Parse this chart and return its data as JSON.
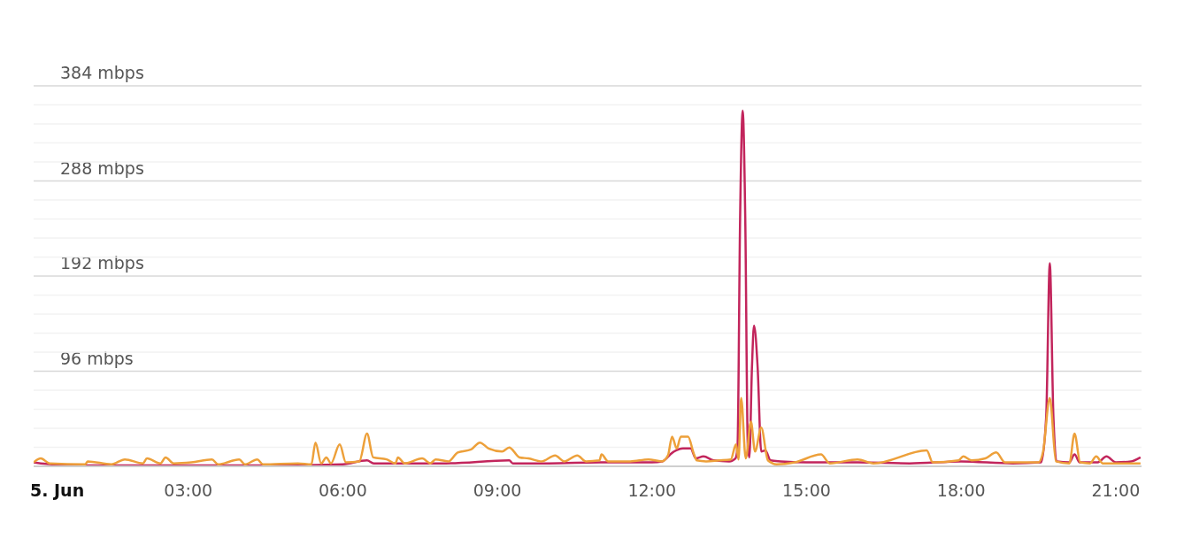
{
  "chart_data": {
    "type": "line",
    "xlim": [
      0,
      21.5
    ],
    "xticks": [
      {
        "value": 0,
        "label": "5. Jun"
      },
      {
        "value": 3,
        "label": "03:00"
      },
      {
        "value": 6,
        "label": "06:00"
      },
      {
        "value": 9,
        "label": "09:00"
      },
      {
        "value": 12,
        "label": "12:00"
      },
      {
        "value": 15,
        "label": "15:00"
      },
      {
        "value": 18,
        "label": "18:00"
      },
      {
        "value": 21,
        "label": "21:00"
      }
    ],
    "ylim": [
      0,
      384
    ],
    "yticks": [
      {
        "value": 0,
        "label": null
      },
      {
        "value": 19.2,
        "label": null
      },
      {
        "value": 38.4,
        "label": null
      },
      {
        "value": 57.6,
        "label": null
      },
      {
        "value": 76.8,
        "label": null
      },
      {
        "value": 96,
        "label": "96 mbps"
      },
      {
        "value": 115.2,
        "label": null
      },
      {
        "value": 134.4,
        "label": null
      },
      {
        "value": 153.6,
        "label": null
      },
      {
        "value": 172.8,
        "label": null
      },
      {
        "value": 192,
        "label": "192 mbps"
      },
      {
        "value": 211.2,
        "label": null
      },
      {
        "value": 230.4,
        "label": null
      },
      {
        "value": 249.6,
        "label": null
      },
      {
        "value": 268.8,
        "label": null
      },
      {
        "value": 288,
        "label": "288 mbps"
      },
      {
        "value": 307.2,
        "label": null
      },
      {
        "value": 326.4,
        "label": null
      },
      {
        "value": 345.6,
        "label": null
      },
      {
        "value": 364.8,
        "label": null
      },
      {
        "value": 384,
        "label": "384 mbps"
      }
    ],
    "grid": "y",
    "legend": false,
    "marker": "none",
    "series": [
      {
        "color": "#c2255c",
        "x": [
          0,
          0.14,
          1.0,
          2.5,
          3.5,
          5.0,
          6.0,
          6.47,
          6.6,
          8.0,
          9.23,
          9.3,
          10.0,
          11.0,
          12.0,
          12.2,
          12.4,
          12.6,
          12.75,
          12.85,
          13.0,
          13.2,
          13.5,
          13.62,
          13.66,
          13.71,
          13.76,
          13.81,
          13.86,
          13.89,
          13.94,
          13.98,
          14.05,
          14.12,
          14.2,
          14.3,
          14.5,
          15.0,
          16.0,
          17.0,
          18.0,
          19.0,
          19.55,
          19.65,
          19.72,
          19.79,
          19.86,
          20.1,
          20.2,
          20.3,
          20.65,
          20.82,
          21.0,
          21.3,
          21.48
        ],
        "values": [
          4,
          3,
          1,
          1,
          1,
          1,
          2,
          6,
          3,
          3,
          6,
          3,
          3,
          4,
          4,
          5,
          14,
          18,
          18,
          8,
          10,
          6,
          5,
          8,
          20,
          250,
          359,
          250,
          20,
          9,
          100,
          142,
          100,
          15,
          16,
          6,
          5,
          4,
          4,
          3,
          5,
          3,
          4,
          50,
          205,
          50,
          5,
          4,
          12,
          4,
          4,
          10,
          4,
          5,
          9
        ]
      },
      {
        "color": "#eda03a",
        "x": [
          0,
          0.14,
          0.31,
          1.0,
          1.05,
          1.51,
          1.77,
          2.12,
          2.2,
          2.46,
          2.56,
          2.72,
          3.06,
          3.46,
          3.58,
          3.99,
          4.1,
          4.34,
          4.45,
          5.13,
          5.39,
          5.47,
          5.58,
          5.68,
          5.77,
          5.94,
          6.06,
          6.32,
          6.47,
          6.59,
          6.85,
          7.02,
          7.07,
          7.2,
          7.54,
          7.7,
          7.8,
          8.05,
          8.23,
          8.49,
          8.66,
          8.83,
          9.09,
          9.23,
          9.43,
          9.6,
          9.86,
          10.12,
          10.3,
          10.55,
          10.72,
          10.98,
          11.02,
          11.15,
          11.58,
          11.93,
          12.19,
          12.31,
          12.39,
          12.48,
          12.56,
          12.7,
          12.81,
          12.87,
          13.05,
          13.3,
          13.53,
          13.63,
          13.68,
          13.73,
          13.82,
          13.92,
          14.0,
          14.12,
          14.25,
          14.42,
          14.77,
          15.28,
          15.45,
          15.99,
          16.3,
          17.33,
          17.45,
          17.95,
          18.04,
          18.2,
          18.47,
          18.68,
          18.85,
          19.5,
          19.59,
          19.72,
          19.84,
          20.1,
          20.2,
          20.31,
          20.5,
          20.62,
          20.75,
          21.1,
          21.48
        ],
        "values": [
          4,
          8,
          3,
          2,
          5,
          2,
          7,
          3,
          8,
          3,
          9,
          3,
          4,
          7,
          2,
          7,
          2,
          7,
          2,
          3,
          2,
          24,
          3,
          9,
          3,
          22,
          4,
          5,
          33,
          9,
          7,
          3,
          9,
          3,
          8,
          3,
          7,
          5,
          14,
          17,
          24,
          18,
          15,
          19,
          9,
          8,
          5,
          11,
          5,
          11,
          5,
          6,
          12,
          5,
          5,
          7,
          5,
          11,
          30,
          18,
          30,
          30,
          13,
          6,
          5,
          6,
          7,
          22,
          7,
          69,
          8,
          45,
          15,
          39,
          6,
          2,
          4,
          12,
          3,
          7,
          3,
          16,
          4,
          6,
          10,
          6,
          8,
          14,
          4,
          4,
          15,
          69,
          5,
          3,
          33,
          4,
          3,
          10,
          3,
          3,
          3
        ]
      }
    ]
  }
}
